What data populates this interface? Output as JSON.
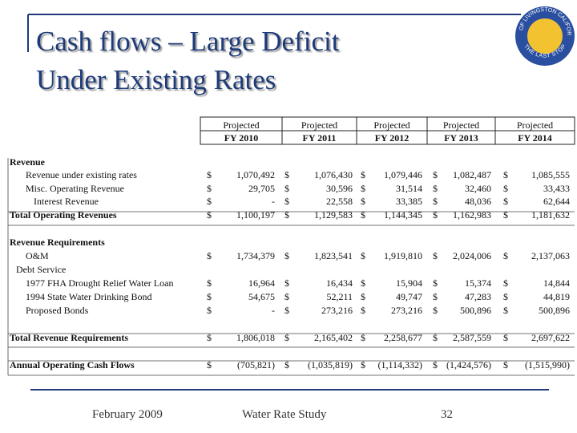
{
  "title": {
    "line1": "Cash flows – Large Deficit",
    "line2": "Under Existing Rates"
  },
  "logo": {
    "top_text": "CITY OF LIVINGSTON CALIFORNIA",
    "bottom_text": "THE LAST STOP"
  },
  "table": {
    "currency": "$",
    "columns": [
      [
        "Projected",
        "FY 2010"
      ],
      [
        "Projected",
        "FY 2011"
      ],
      [
        "Projected",
        "FY 2012"
      ],
      [
        "Projected",
        "FY 2013"
      ],
      [
        "Projected",
        "FY 2014"
      ]
    ],
    "rows": [
      {
        "label": "Revenue"
      },
      {
        "label": "Revenue under existing rates",
        "values": [
          "1,070,492",
          "1,076,430",
          "1,079,446",
          "1,082,487",
          "1,085,555"
        ]
      },
      {
        "label": "Misc. Operating Revenue",
        "values": [
          "29,705",
          "30,596",
          "31,514",
          "32,460",
          "33,433"
        ]
      },
      {
        "label": "Interest Revenue",
        "values": [
          "-",
          "22,558",
          "33,385",
          "48,036",
          "62,644"
        ]
      },
      {
        "label": "Total Operating Revenues",
        "values": [
          "1,100,197",
          "1,129,583",
          "1,144,345",
          "1,162,983",
          "1,181,632"
        ]
      },
      {
        "label": "Revenue Requirements"
      },
      {
        "label": "O&M",
        "values": [
          "1,734,379",
          "1,823,541",
          "1,919,810",
          "2,024,006",
          "2,137,063"
        ]
      },
      {
        "label": "Debt Service"
      },
      {
        "label": "1977 FHA Drought Relief Water Loan",
        "values": [
          "16,964",
          "16,434",
          "15,904",
          "15,374",
          "14,844"
        ]
      },
      {
        "label": "1994 State Water Drinking Bond",
        "values": [
          "54,675",
          "52,211",
          "49,747",
          "47,283",
          "44,819"
        ]
      },
      {
        "label": "Proposed Bonds",
        "values": [
          "-",
          "273,216",
          "273,216",
          "500,896",
          "500,896"
        ]
      },
      {
        "label": "Total Revenue Requirements",
        "values": [
          "1,806,018",
          "2,165,402",
          "2,258,677",
          "2,587,559",
          "2,697,622"
        ]
      },
      {
        "label": "Annual Operating Cash Flows",
        "values": [
          "(705,821)",
          "(1,035,819)",
          "(1,114,332)",
          "(1,424,576)",
          "(1,515,990)"
        ]
      }
    ]
  },
  "footer": {
    "date": "February 2009",
    "study": "Water Rate Study",
    "page": "32"
  }
}
